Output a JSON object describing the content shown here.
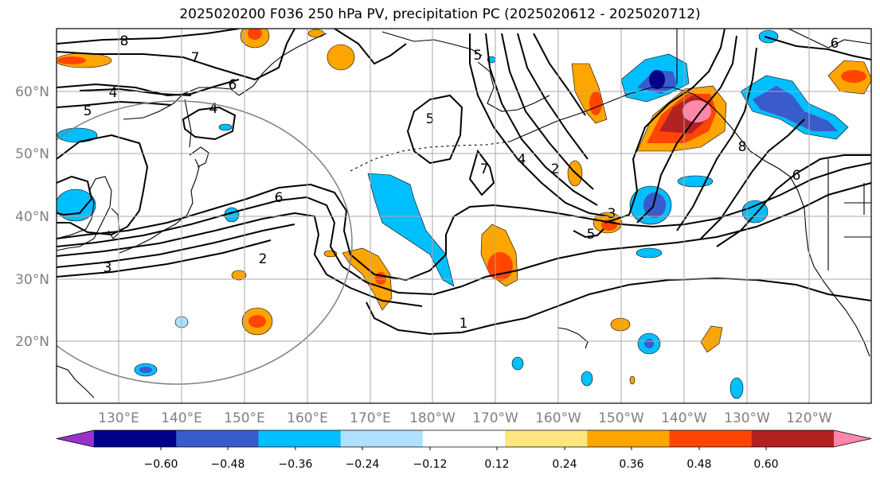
{
  "title": "2025020200 F036 250 hPa PV, precipitation PC (2025020612 - 2025020712)",
  "lat_labels": [
    "20°N",
    "30°N",
    "40°N",
    "50°N",
    "60°N"
  ],
  "lon_labels": [
    "130°E",
    "140°E",
    "150°E",
    "160°E",
    "170°E",
    "180°W",
    "170°W",
    "160°W",
    "150°W",
    "140°W",
    "130°W",
    "120°W"
  ],
  "contour_labels": [
    "8",
    "7",
    "6",
    "5",
    "4",
    "4",
    "6",
    "2",
    "3",
    "1",
    "5",
    "4",
    "2",
    "7",
    "3",
    "5",
    "5",
    "6",
    "8",
    "6"
  ],
  "colorbar": {
    "tick_labels": [
      "−0.60",
      "−0.48",
      "−0.36",
      "−0.24",
      "−0.12",
      "0.12",
      "0.24",
      "0.36",
      "0.48",
      "0.60"
    ],
    "colors": [
      "#9932cc",
      "#00008b",
      "#3a5bcc",
      "#00bfff",
      "#b0e0ff",
      "#ffffff",
      "#ffe680",
      "#ffa500",
      "#ff4500",
      "#b22222",
      "#ff88aa"
    ]
  },
  "colors": {
    "grid": "#aaaaaa",
    "axis_label": "#808080",
    "contour": "#000000"
  }
}
